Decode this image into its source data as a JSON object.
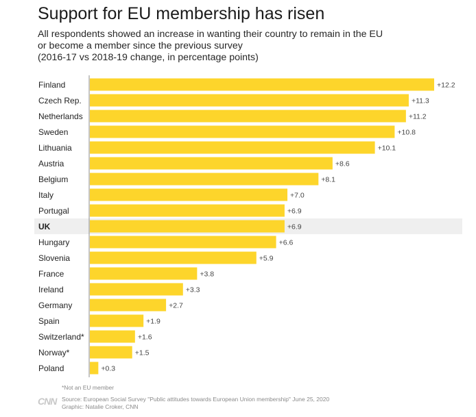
{
  "title": "Support for EU membership has risen",
  "subtitle": [
    "All respondents showed an increase in wanting their country to remain in the EU",
    "or become a member since the previous survey",
    "(2016-17 vs 2018-19 change, in percentage points)"
  ],
  "footnote": "*Not an EU member",
  "logo": "CNN",
  "source": "Source: European Social Survey \"Public attitudes towards European Union membership\" June 25, 2020",
  "credit": "Graphic: Natalie Croker, CNN",
  "colors": {
    "bar": "#fdd52b",
    "highlight_row": "#efefef",
    "axis": "#8c8c8c",
    "label": "#222222",
    "value_label": "#444444"
  },
  "chart_data": {
    "type": "bar",
    "orientation": "horizontal",
    "title": "Support for EU membership has risen",
    "xlabel": "",
    "ylabel": "",
    "xlim": [
      0,
      12.2
    ],
    "highlight": "UK",
    "categories": [
      "Finland",
      "Czech Rep.",
      "Netherlands",
      "Sweden",
      "Lithuania",
      "Austria",
      "Belgium",
      "Italy",
      "Portugal",
      "UK",
      "Hungary",
      "Slovenia",
      "France",
      "Ireland",
      "Germany",
      "Spain",
      "Switzerland*",
      "Norway*",
      "Poland"
    ],
    "values": [
      12.2,
      11.3,
      11.2,
      10.8,
      10.1,
      8.6,
      8.1,
      7.0,
      6.9,
      6.9,
      6.6,
      5.9,
      3.8,
      3.3,
      2.7,
      1.9,
      1.6,
      1.5,
      0.3
    ],
    "value_labels": [
      "+12.2",
      "+11.3",
      "+11.2",
      "+10.8",
      "+10.1",
      "+8.6",
      "+8.1",
      "+7.0",
      "+6.9",
      "+6.9",
      "+6.6",
      "+5.9",
      "+3.8",
      "+3.3",
      "+2.7",
      "+1.9",
      "+1.6",
      "+1.5",
      "+0.3"
    ]
  }
}
